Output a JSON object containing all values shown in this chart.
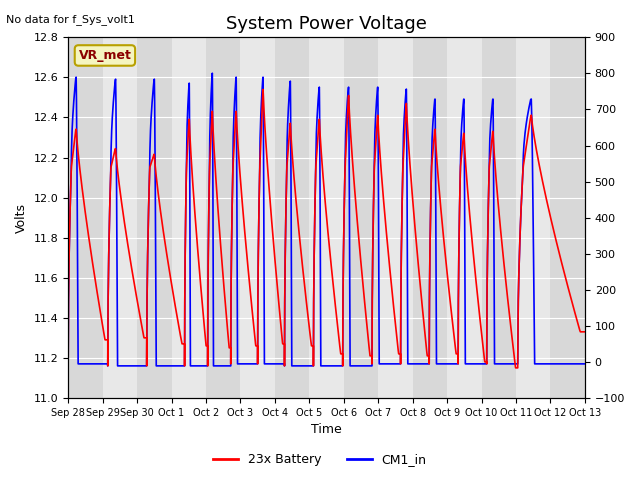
{
  "title": "System Power Voltage",
  "top_left_text": "No data for f_Sys_volt1",
  "annotation_text": "VR_met",
  "xlabel": "Time",
  "ylabel": "Volts",
  "ylim_left": [
    11.0,
    12.8
  ],
  "ylim_right": [
    -100,
    900
  ],
  "yticks_left": [
    11.0,
    11.2,
    11.4,
    11.6,
    11.8,
    12.0,
    12.2,
    12.4,
    12.6,
    12.8
  ],
  "yticks_right": [
    -100,
    0,
    100,
    200,
    300,
    400,
    500,
    600,
    700,
    800,
    900
  ],
  "xtick_labels": [
    "Sep 28",
    "Sep 29",
    "Sep 30",
    "Oct 1",
    "Oct 2",
    "Oct 3",
    "Oct 4",
    "Oct 5",
    "Oct 6",
    "Oct 7",
    "Oct 8",
    "Oct 9",
    "Oct 10",
    "Oct 11",
    "Oct 12",
    "Oct 13"
  ],
  "legend_labels": [
    "23x Battery",
    "CM1_in"
  ],
  "figsize": [
    6.4,
    4.8
  ],
  "dpi": 100,
  "bg_color": "#e8e8e8",
  "band_light": "#e8e8e8",
  "band_dark": "#d8d8d8",
  "title_fontsize": 13,
  "axis_fontsize": 9,
  "tick_fontsize": 8
}
